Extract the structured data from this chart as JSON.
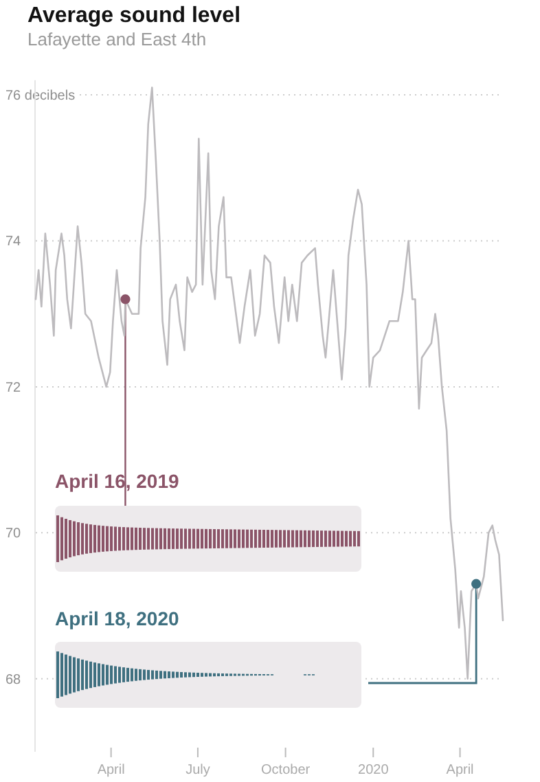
{
  "chart_data": {
    "type": "line",
    "title": "Average sound level",
    "subtitle": "Lafayette and East 4th",
    "x": [
      "2019-01-12",
      "2019-01-15",
      "2019-01-18",
      "2019-01-22",
      "2019-01-27",
      "2019-01-31",
      "2019-02-02",
      "2019-02-08",
      "2019-02-11",
      "2019-02-14",
      "2019-02-18",
      "2019-02-21",
      "2019-02-25",
      "2019-03-01",
      "2019-03-05",
      "2019-03-11",
      "2019-03-19",
      "2019-03-27",
      "2019-03-31",
      "2019-04-03",
      "2019-04-07",
      "2019-04-12",
      "2019-04-15",
      "2019-04-16",
      "2019-04-23",
      "2019-04-30",
      "2019-05-02",
      "2019-05-07",
      "2019-05-10",
      "2019-05-14",
      "2019-05-18",
      "2019-05-22",
      "2019-05-25",
      "2019-05-30",
      "2019-06-02",
      "2019-06-08",
      "2019-06-12",
      "2019-06-17",
      "2019-06-20",
      "2019-06-25",
      "2019-06-29",
      "2019-07-02",
      "2019-07-06",
      "2019-07-12",
      "2019-07-15",
      "2019-07-19",
      "2019-07-23",
      "2019-07-28",
      "2019-07-31",
      "2019-08-05",
      "2019-08-10",
      "2019-08-14",
      "2019-08-19",
      "2019-08-25",
      "2019-08-30",
      "2019-09-04",
      "2019-09-09",
      "2019-09-15",
      "2019-09-19",
      "2019-09-24",
      "2019-09-30",
      "2019-10-04",
      "2019-10-08",
      "2019-10-13",
      "2019-10-18",
      "2019-10-24",
      "2019-11-01",
      "2019-11-04",
      "2019-11-09",
      "2019-11-12",
      "2019-11-16",
      "2019-11-20",
      "2019-11-23",
      "2019-11-29",
      "2019-12-03",
      "2019-12-06",
      "2019-12-11",
      "2019-12-16",
      "2019-12-20",
      "2019-12-25",
      "2019-12-28",
      "2020-01-01",
      "2020-01-08",
      "2020-01-13",
      "2020-01-18",
      "2020-01-22",
      "2020-01-27",
      "2020-02-01",
      "2020-02-07",
      "2020-02-11",
      "2020-02-14",
      "2020-02-18",
      "2020-02-21",
      "2020-02-26",
      "2020-03-02",
      "2020-03-06",
      "2020-03-09",
      "2020-03-13",
      "2020-03-18",
      "2020-03-22",
      "2020-03-27",
      "2020-03-31",
      "2020-04-02",
      "2020-04-06",
      "2020-04-09",
      "2020-04-13",
      "2020-04-18",
      "2020-04-20",
      "2020-04-26",
      "2020-05-01",
      "2020-05-05",
      "2020-05-08",
      "2020-05-12",
      "2020-05-16"
    ],
    "series": [
      {
        "color": "#bdbbbe",
        "line_style": "solid",
        "values": [
          73.2,
          73.6,
          73.1,
          74.1,
          73.4,
          72.7,
          73.6,
          74.1,
          73.8,
          73.2,
          72.8,
          73.4,
          74.2,
          73.7,
          73.0,
          72.9,
          72.4,
          72.0,
          72.2,
          72.9,
          73.6,
          72.9,
          72.7,
          73.2,
          73.0,
          73.0,
          73.9,
          74.6,
          75.6,
          76.1,
          75.1,
          74.0,
          72.9,
          72.3,
          73.2,
          73.4,
          72.9,
          72.5,
          73.5,
          73.3,
          73.4,
          75.4,
          73.4,
          75.2,
          73.6,
          73.2,
          74.2,
          74.6,
          73.5,
          73.5,
          73.0,
          72.6,
          73.1,
          73.6,
          72.7,
          73.0,
          73.8,
          73.7,
          73.1,
          72.6,
          73.5,
          72.9,
          73.4,
          72.9,
          73.7,
          73.8,
          73.9,
          73.4,
          72.7,
          72.4,
          73.0,
          73.6,
          73.1,
          72.1,
          72.8,
          73.8,
          74.3,
          74.7,
          74.5,
          73.4,
          72.0,
          72.4,
          72.5,
          72.7,
          72.9,
          72.9,
          72.9,
          73.3,
          74.0,
          73.2,
          73.2,
          71.7,
          72.4,
          72.5,
          72.6,
          73.0,
          72.7,
          72.0,
          71.4,
          70.2,
          69.5,
          68.7,
          69.2,
          68.7,
          68.0,
          69.2,
          69.3,
          69.1,
          69.4,
          70.0,
          70.1,
          69.9,
          69.7,
          68.8
        ]
      },
      {
        "type": "scatter",
        "color": "#8b5468",
        "marker": "circle",
        "x": [
          "2019-04-16"
        ],
        "values": [
          73.2
        ]
      },
      {
        "type": "scatter",
        "color": "#3f7080",
        "marker": "circle",
        "x": [
          "2020-04-18"
        ],
        "values": [
          69.3
        ]
      }
    ],
    "xlim": [
      "2019-01-12",
      "2020-05-16"
    ],
    "xticks": [
      {
        "value": "2019-04-01",
        "label": "April"
      },
      {
        "value": "2019-07-01",
        "label": "July"
      },
      {
        "value": "2019-10-01",
        "label": "October"
      },
      {
        "value": "2020-01-01",
        "label": "2020"
      },
      {
        "value": "2020-04-01",
        "label": "April"
      }
    ],
    "ylim": [
      67,
      76.2
    ],
    "yticks": [
      {
        "value": 76,
        "label": "76 decibels"
      },
      74,
      72,
      70,
      68
    ],
    "grid": "y",
    "annotations": [
      "April 16, 2019",
      "April 18, 2020"
    ]
  }
}
